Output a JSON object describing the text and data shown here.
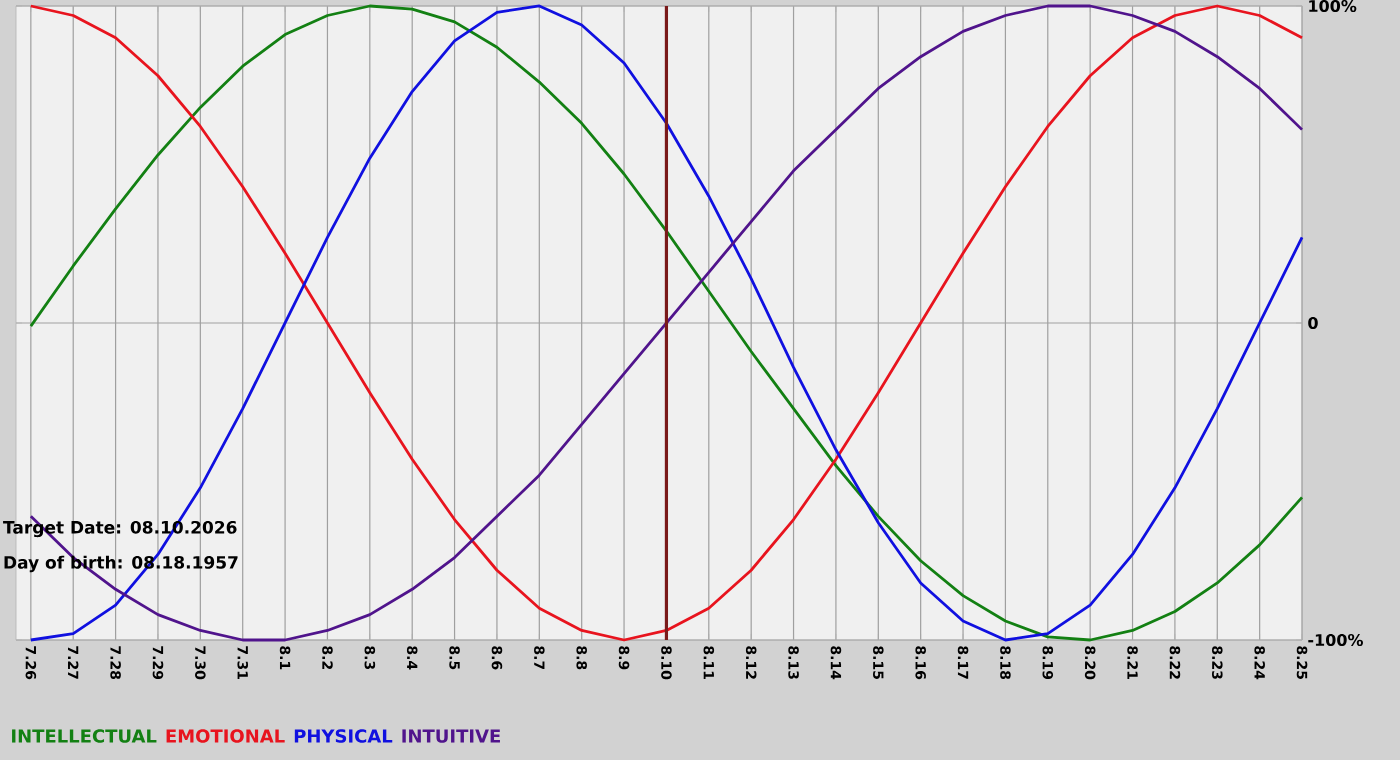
{
  "chart_data": {
    "type": "line",
    "categories": [
      "7.26",
      "7.27",
      "7.28",
      "7.29",
      "7.30",
      "7.31",
      "8.1",
      "8.2",
      "8.3",
      "8.4",
      "8.5",
      "8.6",
      "8.7",
      "8.8",
      "8.9",
      "8.10",
      "8.11",
      "8.12",
      "8.13",
      "8.14",
      "8.15",
      "8.16",
      "8.17",
      "8.18",
      "8.19",
      "8.20",
      "8.21",
      "8.22",
      "8.23",
      "8.24",
      "8.25"
    ],
    "series": [
      {
        "name": "INTELLECTUAL",
        "color": "#138013",
        "values": [
          -1,
          18,
          36,
          53,
          68,
          81,
          91,
          97,
          100,
          99,
          95,
          87,
          76,
          63,
          47,
          29,
          10,
          -9,
          -27,
          -45,
          -61,
          -75,
          -86,
          -94,
          -99,
          -100,
          -97,
          -91,
          -82,
          -70,
          -55
        ]
      },
      {
        "name": "EMOTIONAL",
        "color": "#e8141e",
        "values": [
          100,
          97,
          90,
          78,
          62,
          43,
          22,
          0,
          -22,
          -43,
          -62,
          -78,
          -90,
          -97,
          -100,
          -97,
          -90,
          -78,
          -62,
          -43,
          -22,
          0,
          22,
          43,
          62,
          78,
          90,
          97,
          100,
          97,
          90
        ]
      },
      {
        "name": "PHYSICAL",
        "color": "#1010e0",
        "values": [
          -100,
          -98,
          -89,
          -73,
          -52,
          -27,
          0,
          27,
          52,
          73,
          89,
          98,
          100,
          94,
          82,
          63,
          40,
          14,
          -14,
          -40,
          -63,
          -82,
          -94,
          -100,
          -98,
          -89,
          -73,
          -52,
          -27,
          0,
          27
        ]
      },
      {
        "name": "INTUITIVE",
        "color": "#50148c",
        "values": [
          -61,
          -74,
          -84,
          -92,
          -97,
          -100,
          -100,
          -97,
          -92,
          -84,
          -74,
          -61,
          -48,
          -32,
          -16,
          0,
          16,
          32,
          48,
          61,
          74,
          84,
          92,
          97,
          100,
          100,
          97,
          92,
          84,
          74,
          61
        ]
      }
    ],
    "ylim": [
      -100,
      100
    ],
    "yticks": [
      {
        "value": 100,
        "label": "100%"
      },
      0,
      {
        "value": -100,
        "label": "-100%"
      }
    ],
    "grid": true,
    "legend": "bottom left",
    "ref_lines": [
      {
        "axis": "x",
        "value": "8.10",
        "color": "#7a1a1a"
      }
    ],
    "annotations": [
      "Target Date: 08.10.2026",
      "Day of birth: 08.18.1957"
    ]
  }
}
